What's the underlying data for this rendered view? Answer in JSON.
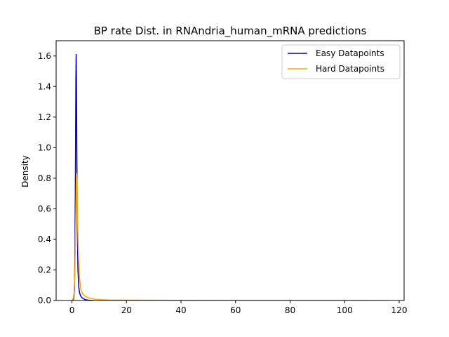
{
  "chart_data": {
    "type": "line",
    "title": "BP rate Dist. in RNAndria_human_mRNA predictions",
    "xlabel": "",
    "ylabel": "Density",
    "xlim": [
      -5.8,
      121.8
    ],
    "ylim": [
      0,
      1.7
    ],
    "xticks": [
      0,
      20,
      40,
      60,
      80,
      100,
      120
    ],
    "yticks": [
      0.0,
      0.2,
      0.4,
      0.6,
      0.8,
      1.0,
      1.2,
      1.4,
      1.6
    ],
    "xtick_labels": [
      "0",
      "20",
      "40",
      "60",
      "80",
      "100",
      "120"
    ],
    "ytick_labels": [
      "0.0",
      "0.2",
      "0.4",
      "0.6",
      "0.8",
      "1.0",
      "1.2",
      "1.4",
      "1.6"
    ],
    "grid": false,
    "legend_position": "upper-right",
    "series": [
      {
        "name": "Easy Datapoints",
        "color": "#0000cc",
        "x": [
          0.2,
          0.6,
          0.9,
          1.1,
          1.3,
          1.45,
          1.55,
          1.65,
          1.8,
          2.0,
          2.2,
          2.5,
          2.8,
          3.2,
          3.6,
          4.2,
          5.0,
          6.0,
          8.0
        ],
        "y": [
          0.0,
          0.01,
          0.06,
          0.3,
          0.9,
          1.45,
          1.61,
          1.45,
          0.95,
          0.45,
          0.2,
          0.09,
          0.05,
          0.03,
          0.02,
          0.012,
          0.005,
          0.002,
          0.0
        ]
      },
      {
        "name": "Hard Datapoints",
        "color": "#ffa500",
        "x": [
          0.0,
          0.4,
          0.8,
          1.1,
          1.4,
          1.6,
          1.75,
          1.9,
          2.1,
          2.4,
          2.8,
          3.3,
          4.0,
          5.0,
          6.5,
          8.0,
          10.0,
          14.0,
          20.0,
          40.0,
          60.0,
          80.0,
          100.0,
          116.0
        ],
        "y": [
          0.0,
          0.01,
          0.05,
          0.2,
          0.55,
          0.78,
          0.83,
          0.74,
          0.5,
          0.28,
          0.14,
          0.07,
          0.04,
          0.025,
          0.015,
          0.01,
          0.006,
          0.003,
          0.002,
          0.001,
          0.0008,
          0.0006,
          0.0004,
          0.0
        ]
      }
    ]
  }
}
